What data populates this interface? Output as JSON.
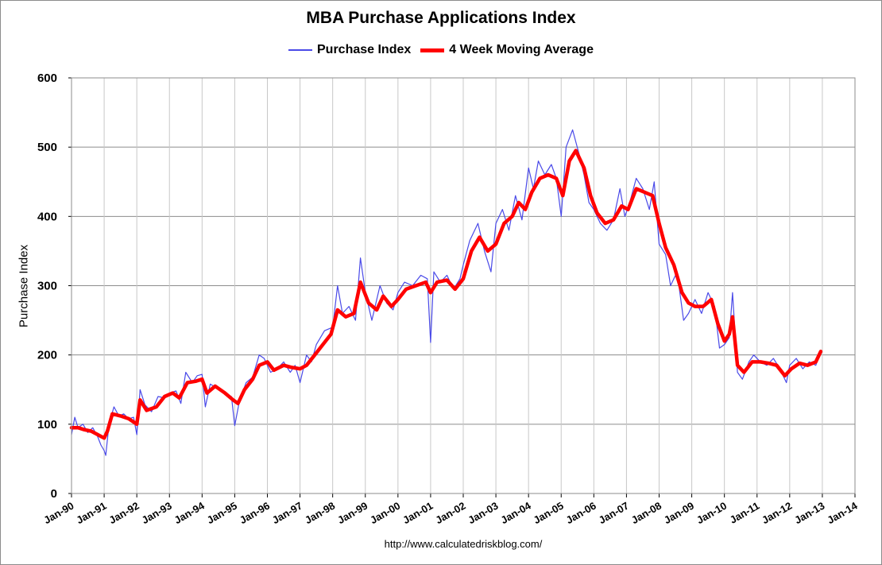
{
  "chart_data": {
    "type": "line",
    "title": "MBA Purchase Applications Index",
    "ylabel": "Purchase Index",
    "xlabel": "",
    "ylim": [
      0,
      600
    ],
    "yticks": [
      0,
      100,
      200,
      300,
      400,
      500,
      600
    ],
    "xlim": [
      1990,
      2014
    ],
    "xticks": [
      "Jan-90",
      "Jan-91",
      "Jan-92",
      "Jan-93",
      "Jan-94",
      "Jan-95",
      "Jan-96",
      "Jan-97",
      "Jan-98",
      "Jan-99",
      "Jan-00",
      "Jan-01",
      "Jan-02",
      "Jan-03",
      "Jan-04",
      "Jan-05",
      "Jan-06",
      "Jan-07",
      "Jan-08",
      "Jan-09",
      "Jan-10",
      "Jan-11",
      "Jan-12",
      "Jan-13",
      "Jan-14"
    ],
    "grid": true,
    "legend_position": "top-center",
    "series": [
      {
        "name": "Purchase Index",
        "color": "#4a4ae8",
        "style": "thin",
        "points": [
          [
            1990.0,
            85
          ],
          [
            1990.1,
            110
          ],
          [
            1990.2,
            95
          ],
          [
            1990.35,
            100
          ],
          [
            1990.5,
            88
          ],
          [
            1990.65,
            95
          ],
          [
            1990.8,
            82
          ],
          [
            1990.9,
            70
          ],
          [
            1991.0,
            62
          ],
          [
            1991.05,
            55
          ],
          [
            1991.15,
            100
          ],
          [
            1991.3,
            125
          ],
          [
            1991.45,
            112
          ],
          [
            1991.6,
            115
          ],
          [
            1991.75,
            108
          ],
          [
            1991.9,
            110
          ],
          [
            1992.0,
            85
          ],
          [
            1992.1,
            150
          ],
          [
            1992.25,
            128
          ],
          [
            1992.45,
            118
          ],
          [
            1992.65,
            140
          ],
          [
            1992.85,
            138
          ],
          [
            1993.0,
            145
          ],
          [
            1993.2,
            148
          ],
          [
            1993.35,
            130
          ],
          [
            1993.5,
            175
          ],
          [
            1993.7,
            160
          ],
          [
            1993.85,
            170
          ],
          [
            1994.0,
            172
          ],
          [
            1994.1,
            125
          ],
          [
            1994.25,
            158
          ],
          [
            1994.45,
            152
          ],
          [
            1994.7,
            145
          ],
          [
            1994.9,
            140
          ],
          [
            1995.0,
            98
          ],
          [
            1995.15,
            135
          ],
          [
            1995.35,
            160
          ],
          [
            1995.55,
            168
          ],
          [
            1995.75,
            200
          ],
          [
            1995.9,
            195
          ],
          [
            1996.1,
            175
          ],
          [
            1996.3,
            180
          ],
          [
            1996.5,
            190
          ],
          [
            1996.7,
            175
          ],
          [
            1996.85,
            185
          ],
          [
            1997.0,
            160
          ],
          [
            1997.2,
            200
          ],
          [
            1997.35,
            190
          ],
          [
            1997.5,
            215
          ],
          [
            1997.75,
            235
          ],
          [
            1998.0,
            240
          ],
          [
            1998.15,
            300
          ],
          [
            1998.3,
            260
          ],
          [
            1998.5,
            270
          ],
          [
            1998.7,
            250
          ],
          [
            1998.85,
            340
          ],
          [
            1999.0,
            290
          ],
          [
            1999.2,
            250
          ],
          [
            1999.45,
            300
          ],
          [
            1999.65,
            275
          ],
          [
            1999.85,
            265
          ],
          [
            2000.0,
            290
          ],
          [
            2000.2,
            305
          ],
          [
            2000.45,
            300
          ],
          [
            2000.7,
            315
          ],
          [
            2000.9,
            310
          ],
          [
            2001.0,
            218
          ],
          [
            2001.1,
            320
          ],
          [
            2001.3,
            305
          ],
          [
            2001.5,
            315
          ],
          [
            2001.7,
            295
          ],
          [
            2001.9,
            310
          ],
          [
            2002.0,
            330
          ],
          [
            2002.2,
            365
          ],
          [
            2002.45,
            390
          ],
          [
            2002.65,
            350
          ],
          [
            2002.85,
            320
          ],
          [
            2003.0,
            390
          ],
          [
            2003.2,
            410
          ],
          [
            2003.4,
            380
          ],
          [
            2003.6,
            430
          ],
          [
            2003.8,
            395
          ],
          [
            2004.0,
            470
          ],
          [
            2004.15,
            440
          ],
          [
            2004.3,
            480
          ],
          [
            2004.5,
            460
          ],
          [
            2004.7,
            475
          ],
          [
            2004.85,
            455
          ],
          [
            2005.0,
            400
          ],
          [
            2005.15,
            500
          ],
          [
            2005.35,
            525
          ],
          [
            2005.55,
            490
          ],
          [
            2005.7,
            460
          ],
          [
            2005.85,
            420
          ],
          [
            2006.0,
            410
          ],
          [
            2006.2,
            390
          ],
          [
            2006.4,
            380
          ],
          [
            2006.6,
            395
          ],
          [
            2006.8,
            440
          ],
          [
            2006.95,
            400
          ],
          [
            2007.1,
            420
          ],
          [
            2007.3,
            455
          ],
          [
            2007.5,
            440
          ],
          [
            2007.7,
            410
          ],
          [
            2007.85,
            450
          ],
          [
            2008.0,
            360
          ],
          [
            2008.2,
            345
          ],
          [
            2008.35,
            300
          ],
          [
            2008.55,
            320
          ],
          [
            2008.75,
            250
          ],
          [
            2008.9,
            260
          ],
          [
            2009.1,
            280
          ],
          [
            2009.3,
            260
          ],
          [
            2009.5,
            290
          ],
          [
            2009.7,
            270
          ],
          [
            2009.85,
            210
          ],
          [
            2010.0,
            215
          ],
          [
            2010.15,
            225
          ],
          [
            2010.25,
            290
          ],
          [
            2010.4,
            175
          ],
          [
            2010.55,
            165
          ],
          [
            2010.75,
            190
          ],
          [
            2010.9,
            200
          ],
          [
            2011.1,
            190
          ],
          [
            2011.3,
            185
          ],
          [
            2011.5,
            195
          ],
          [
            2011.7,
            180
          ],
          [
            2011.9,
            160
          ],
          [
            2012.0,
            185
          ],
          [
            2012.2,
            195
          ],
          [
            2012.4,
            180
          ],
          [
            2012.6,
            190
          ],
          [
            2012.8,
            185
          ],
          [
            2012.95,
            205
          ]
        ]
      },
      {
        "name": "4 Week Moving Average",
        "color": "#ff0000",
        "style": "thick",
        "points": [
          [
            1990.0,
            95
          ],
          [
            1990.2,
            95
          ],
          [
            1990.4,
            92
          ],
          [
            1990.6,
            90
          ],
          [
            1990.8,
            85
          ],
          [
            1991.0,
            80
          ],
          [
            1991.1,
            90
          ],
          [
            1991.25,
            115
          ],
          [
            1991.5,
            112
          ],
          [
            1991.75,
            108
          ],
          [
            1992.0,
            100
          ],
          [
            1992.1,
            135
          ],
          [
            1992.3,
            120
          ],
          [
            1992.6,
            125
          ],
          [
            1992.85,
            140
          ],
          [
            1993.1,
            145
          ],
          [
            1993.3,
            138
          ],
          [
            1993.55,
            160
          ],
          [
            1993.8,
            162
          ],
          [
            1994.0,
            165
          ],
          [
            1994.15,
            145
          ],
          [
            1994.4,
            155
          ],
          [
            1994.7,
            145
          ],
          [
            1994.95,
            135
          ],
          [
            1995.1,
            130
          ],
          [
            1995.3,
            150
          ],
          [
            1995.55,
            165
          ],
          [
            1995.75,
            185
          ],
          [
            1996.0,
            190
          ],
          [
            1996.2,
            178
          ],
          [
            1996.5,
            185
          ],
          [
            1996.75,
            182
          ],
          [
            1997.0,
            180
          ],
          [
            1997.2,
            185
          ],
          [
            1997.45,
            200
          ],
          [
            1997.7,
            215
          ],
          [
            1997.95,
            230
          ],
          [
            1998.15,
            265
          ],
          [
            1998.4,
            255
          ],
          [
            1998.65,
            260
          ],
          [
            1998.85,
            305
          ],
          [
            1999.1,
            275
          ],
          [
            1999.35,
            265
          ],
          [
            1999.55,
            285
          ],
          [
            1999.8,
            270
          ],
          [
            2000.0,
            280
          ],
          [
            2000.25,
            295
          ],
          [
            2000.55,
            300
          ],
          [
            2000.85,
            305
          ],
          [
            2001.0,
            290
          ],
          [
            2001.2,
            305
          ],
          [
            2001.5,
            308
          ],
          [
            2001.75,
            295
          ],
          [
            2002.0,
            310
          ],
          [
            2002.25,
            350
          ],
          [
            2002.5,
            370
          ],
          [
            2002.75,
            350
          ],
          [
            2003.0,
            360
          ],
          [
            2003.25,
            390
          ],
          [
            2003.5,
            400
          ],
          [
            2003.7,
            420
          ],
          [
            2003.9,
            410
          ],
          [
            2004.1,
            435
          ],
          [
            2004.35,
            455
          ],
          [
            2004.6,
            460
          ],
          [
            2004.85,
            455
          ],
          [
            2005.05,
            430
          ],
          [
            2005.25,
            480
          ],
          [
            2005.45,
            495
          ],
          [
            2005.7,
            470
          ],
          [
            2005.9,
            430
          ],
          [
            2006.1,
            405
          ],
          [
            2006.35,
            390
          ],
          [
            2006.6,
            395
          ],
          [
            2006.85,
            415
          ],
          [
            2007.05,
            410
          ],
          [
            2007.3,
            440
          ],
          [
            2007.55,
            435
          ],
          [
            2007.8,
            430
          ],
          [
            2008.0,
            390
          ],
          [
            2008.2,
            355
          ],
          [
            2008.45,
            330
          ],
          [
            2008.7,
            290
          ],
          [
            2008.9,
            275
          ],
          [
            2009.1,
            270
          ],
          [
            2009.35,
            270
          ],
          [
            2009.6,
            280
          ],
          [
            2009.8,
            245
          ],
          [
            2010.0,
            220
          ],
          [
            2010.15,
            230
          ],
          [
            2010.25,
            255
          ],
          [
            2010.4,
            185
          ],
          [
            2010.6,
            175
          ],
          [
            2010.85,
            190
          ],
          [
            2011.1,
            190
          ],
          [
            2011.35,
            188
          ],
          [
            2011.6,
            185
          ],
          [
            2011.85,
            170
          ],
          [
            2012.05,
            180
          ],
          [
            2012.3,
            188
          ],
          [
            2012.55,
            185
          ],
          [
            2012.8,
            190
          ],
          [
            2012.95,
            205
          ]
        ]
      }
    ]
  },
  "legend": {
    "item1": "Purchase Index",
    "item2": "4 Week Moving Average"
  },
  "source": "http://www.calculatedriskblog.com/"
}
